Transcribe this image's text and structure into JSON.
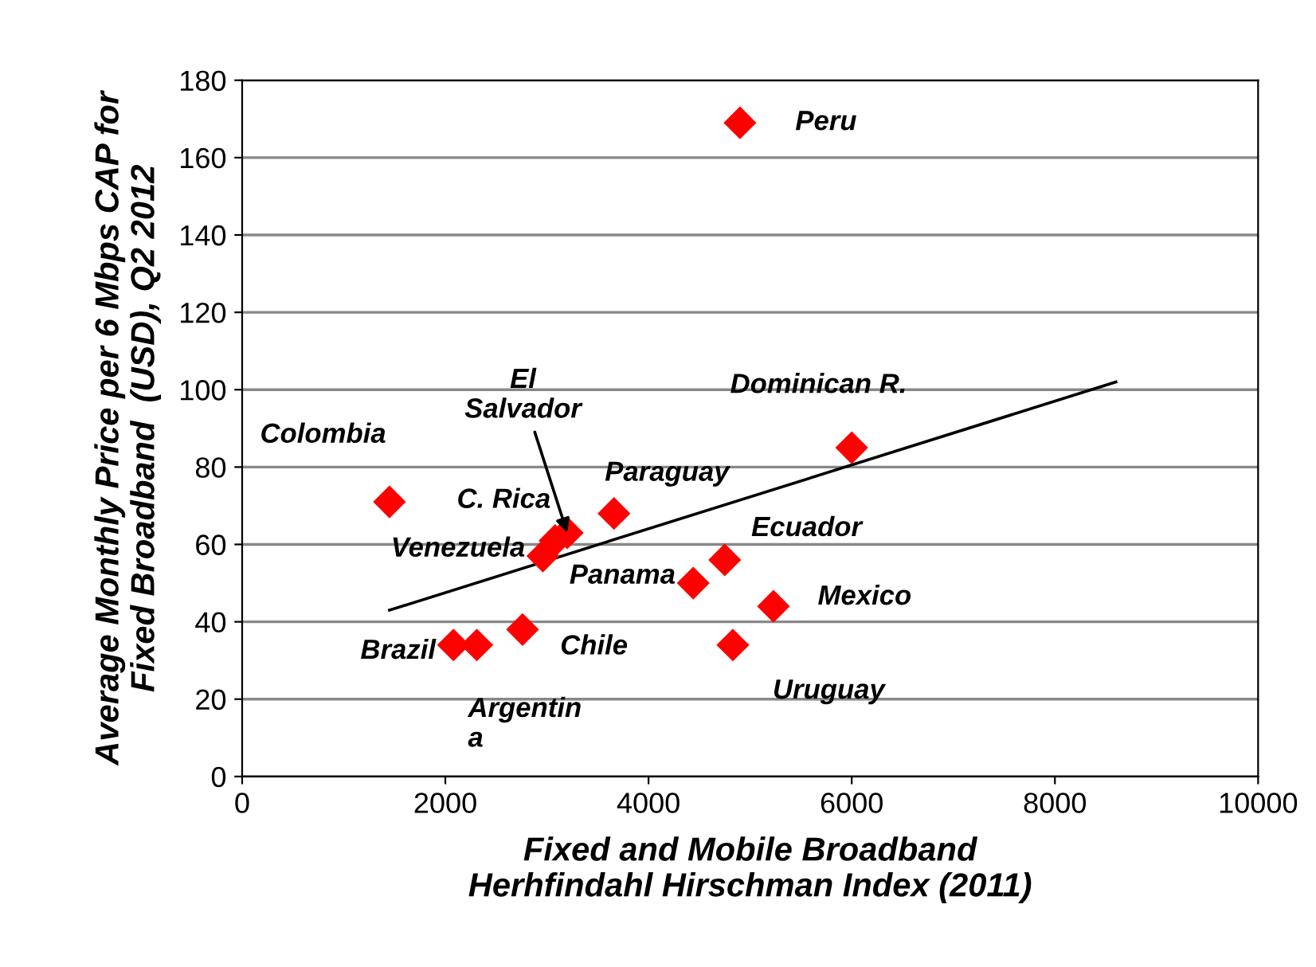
{
  "chart_data": {
    "type": "scatter",
    "xlabel": "Fixed and Mobile Broadband\nHerhfindahl Hirschman Index (2011)",
    "ylabel": "Average Monthly Price per 6 Mbps CAP for\nFixed Broadband  (USD), Q2 2012",
    "series": [
      {
        "color": "#ff0000",
        "marker": "diamond",
        "x": [
          4900,
          1450,
          6000,
          3660,
          3200,
          3080,
          2960,
          4750,
          4440,
          5230,
          4830,
          2760,
          2080,
          2310
        ],
        "values": [
          169,
          71,
          85,
          68,
          63,
          61,
          57,
          56,
          50,
          44,
          34,
          38,
          34,
          34
        ]
      },
      {
        "type": "line",
        "color": "#000000",
        "marker": "none",
        "line_style": "solid",
        "x": [
          1450,
          8600
        ],
        "values": [
          43,
          102
        ]
      }
    ],
    "annotations": [
      {
        "text": "Peru",
        "x": 4900,
        "y": 169
      },
      {
        "text": "Colombia",
        "x": 1450,
        "y": 71
      },
      {
        "text": "Dominican R.",
        "x": 6000,
        "y": 85
      },
      {
        "text": "Paraguay",
        "x": 3660,
        "y": 68
      },
      {
        "text": "El\nSalvador",
        "x": 3200,
        "y": 63
      },
      {
        "text": "C. Rica",
        "x": 3080,
        "y": 61
      },
      {
        "text": "Venezuela",
        "x": 2960,
        "y": 57
      },
      {
        "text": "Ecuador",
        "x": 4750,
        "y": 56
      },
      {
        "text": "Panama",
        "x": 4440,
        "y": 50
      },
      {
        "text": "Mexico",
        "x": 5230,
        "y": 44
      },
      {
        "text": "Uruguay",
        "x": 4830,
        "y": 34
      },
      {
        "text": "Chile",
        "x": 2760,
        "y": 38
      },
      {
        "text": "Brazil",
        "x": 2080,
        "y": 34
      },
      {
        "text": "Argentin\na",
        "x": 2310,
        "y": 34
      }
    ],
    "xlim": [
      0,
      10000
    ],
    "xticks": [
      0,
      2000,
      4000,
      6000,
      8000,
      10000
    ],
    "ylim": [
      0,
      180
    ],
    "yticks": [
      0,
      20,
      40,
      60,
      80,
      100,
      120,
      140,
      160,
      180
    ],
    "grid": "y",
    "legend": false
  }
}
